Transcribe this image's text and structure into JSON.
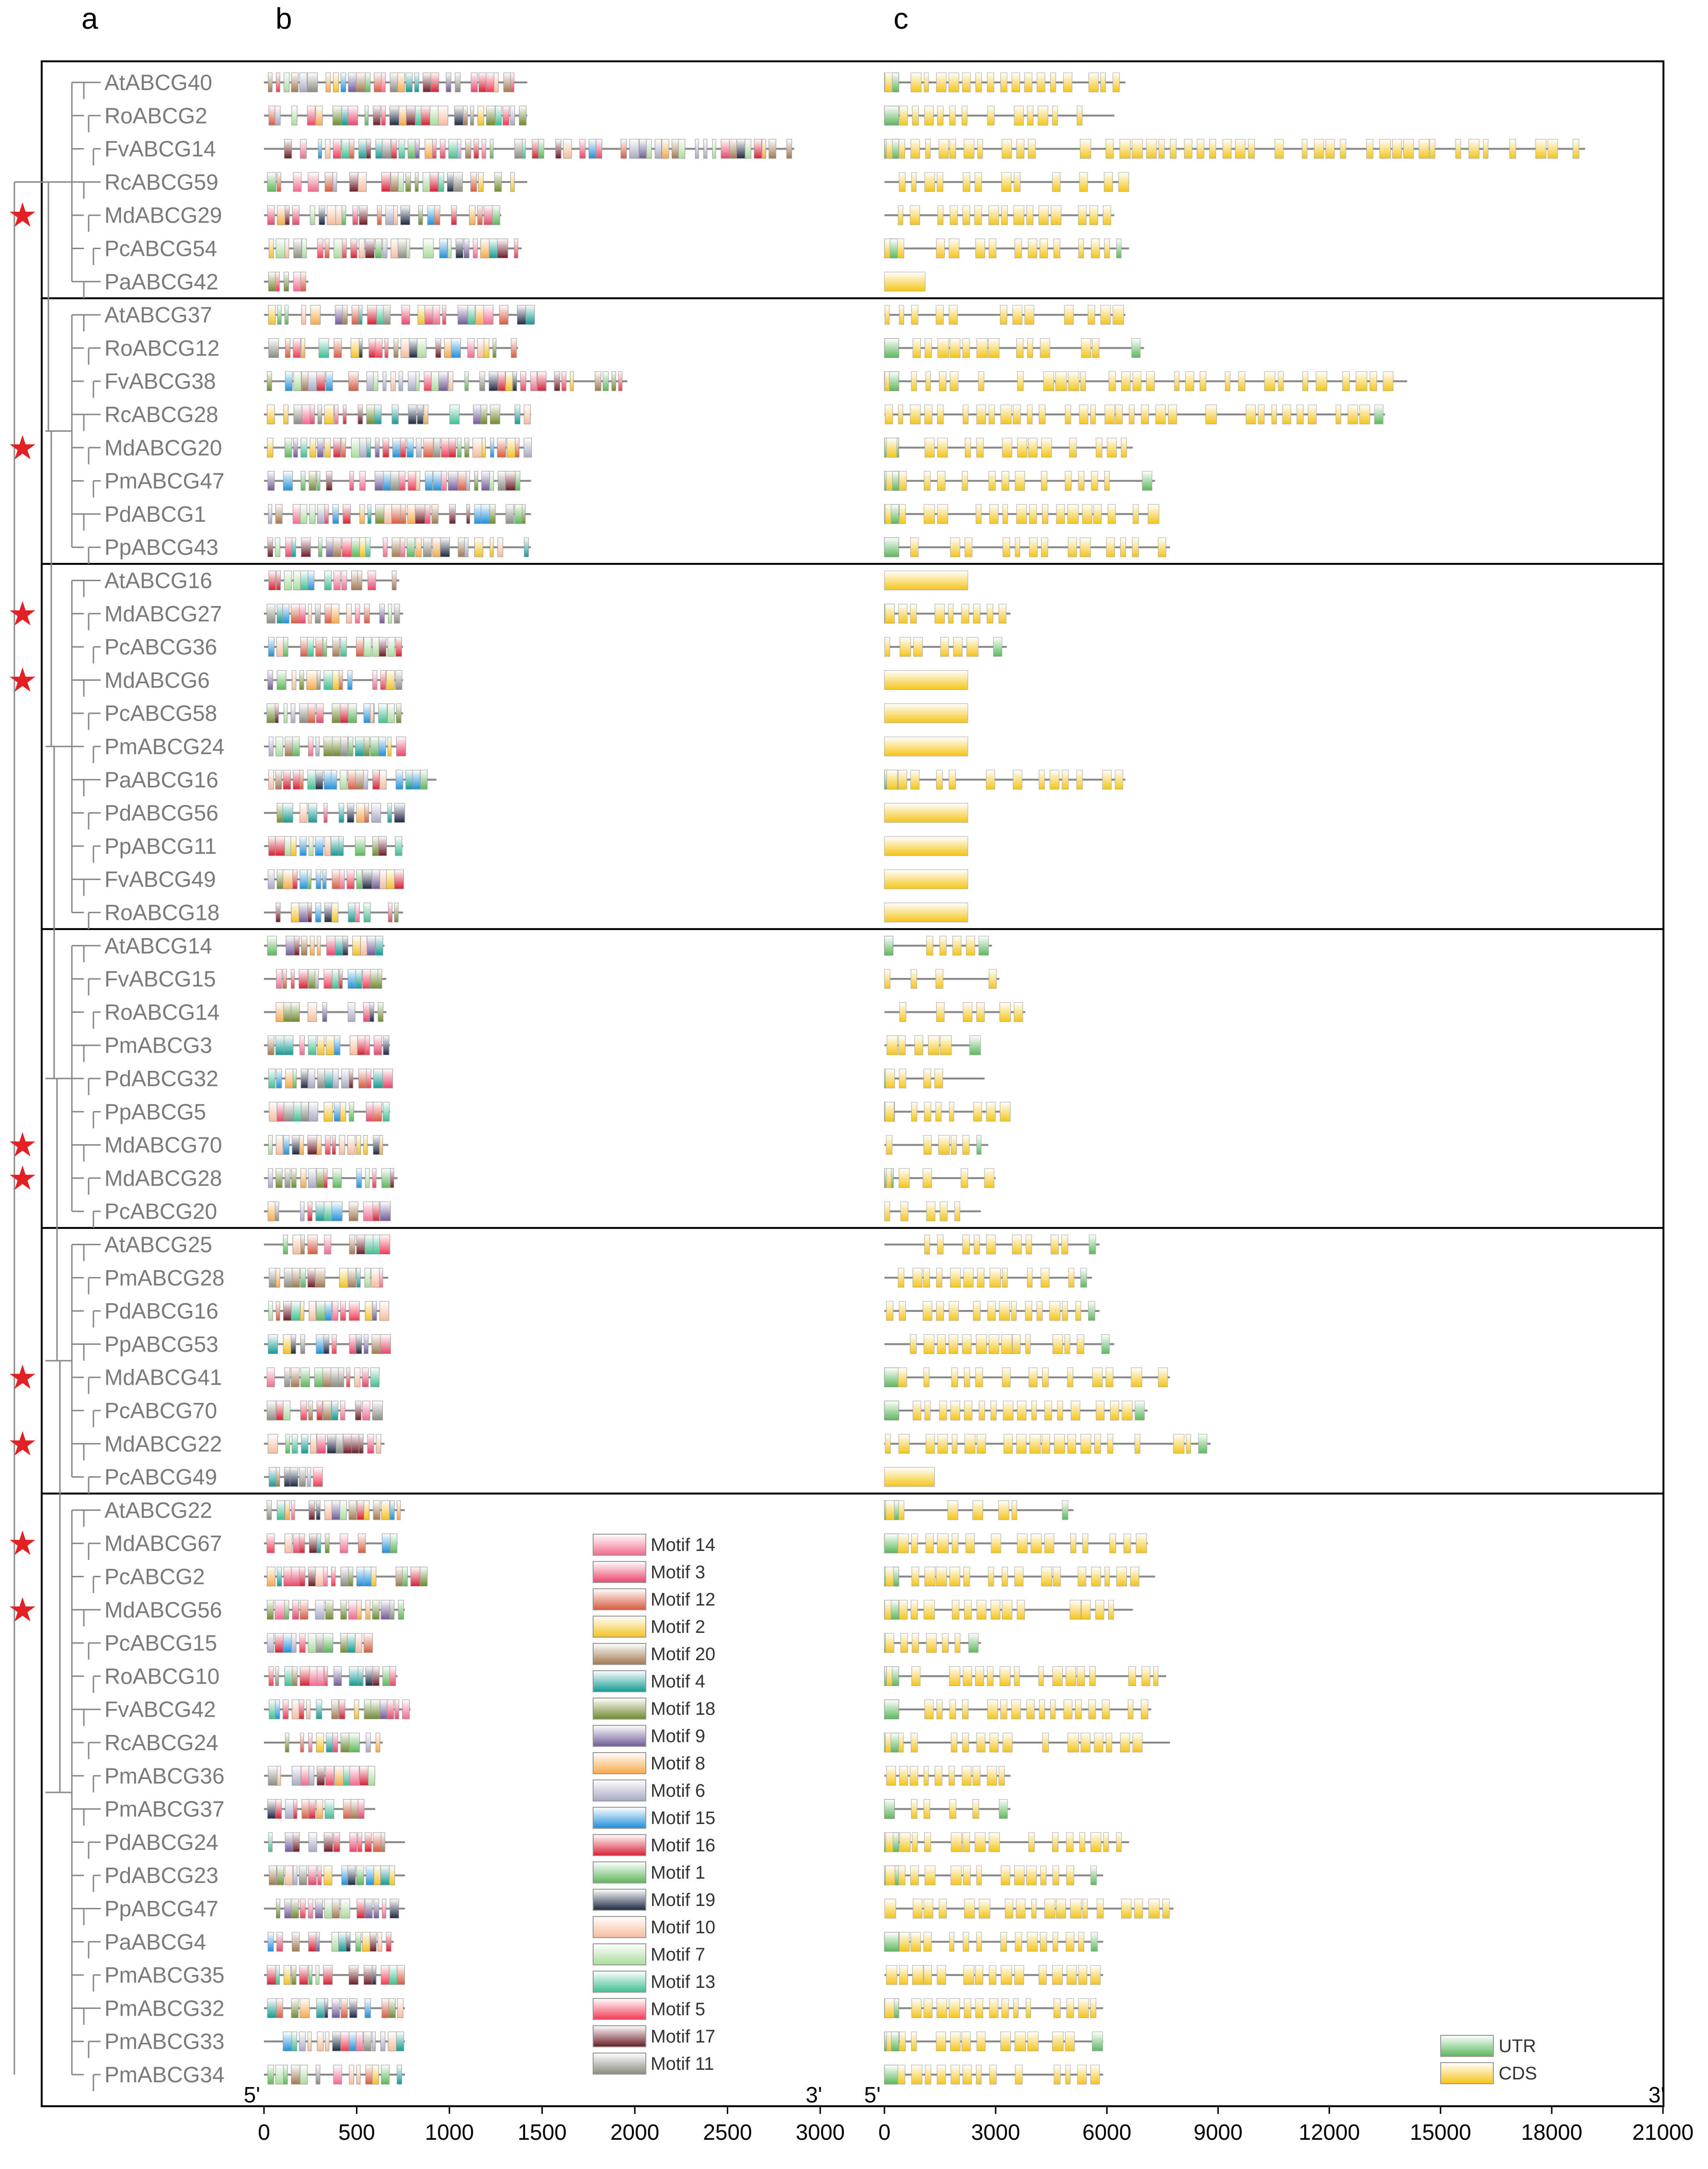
{
  "panel_labels": [
    "a",
    "b",
    "c"
  ],
  "colors": {
    "motif_gradients": {
      "Motif 14": [
        "#ffffff",
        "#f26a8d"
      ],
      "Motif 3": [
        "#ffffff",
        "#e8456a"
      ],
      "Motif 12": [
        "#ffffff",
        "#d85a3e"
      ],
      "Motif 2": [
        "#ffffff",
        "#f4c223"
      ],
      "Motif 20": [
        "#ffffff",
        "#a07850"
      ],
      "Motif 4": [
        "#ffffff",
        "#129a92"
      ],
      "Motif 18": [
        "#ffffff",
        "#6e8a2e"
      ],
      "Motif 9": [
        "#ffffff",
        "#6f5a96"
      ],
      "Motif 8": [
        "#ffffff",
        "#f7a94a"
      ],
      "Motif 6": [
        "#ffffff",
        "#a7a9c4"
      ],
      "Motif 15": [
        "#ffffff",
        "#1e8fdc"
      ],
      "Motif 16": [
        "#ffffff",
        "#d62034"
      ],
      "Motif 1": [
        "#ffffff",
        "#5db65a"
      ],
      "Motif 19": [
        "#ffffff",
        "#1c2740"
      ],
      "Motif 10": [
        "#ffffff",
        "#f6bc9c"
      ],
      "Motif 7": [
        "#ffffff",
        "#a9dc9c"
      ],
      "Motif 13": [
        "#ffffff",
        "#3fbf8f"
      ],
      "Motif 5": [
        "#ffffff",
        "#f23a53"
      ],
      "Motif 17": [
        "#ffffff",
        "#6b1a24"
      ],
      "Motif 11": [
        "#ffffff",
        "#8a8a80"
      ]
    },
    "utr": "#5cb85c",
    "cds": "#f5c518",
    "star": "#e32024",
    "label_text": "#7a7a7a"
  },
  "motif_legend": [
    "Motif 14",
    "Motif 3",
    "Motif 12",
    "Motif 2",
    "Motif 20",
    "Motif 4",
    "Motif 18",
    "Motif 9",
    "Motif 8",
    "Motif 6",
    "Motif 15",
    "Motif 16",
    "Motif 1",
    "Motif 19",
    "Motif 10",
    "Motif 7",
    "Motif 13",
    "Motif 5",
    "Motif 17",
    "Motif 11"
  ],
  "structure_legend": [
    "UTR",
    "CDS"
  ],
  "axis_b": {
    "start_label": "5'",
    "end_label": "3'",
    "ticks": [
      0,
      500,
      1000,
      1500,
      2000,
      2500,
      3000
    ],
    "max": 3000
  },
  "axis_c": {
    "start_label": "5'",
    "end_label": "3'",
    "ticks": [
      0,
      3000,
      6000,
      9000,
      12000,
      15000,
      18000,
      21000
    ],
    "max": 21000
  },
  "groups": [
    {
      "genes": [
        {
          "name": "AtABCG40",
          "star": false,
          "protein_len": 1420,
          "gene_len": 6500
        },
        {
          "name": "RoABCG2",
          "star": false,
          "protein_len": 1420,
          "gene_len": 6200
        },
        {
          "name": "FvABCG14",
          "star": false,
          "protein_len": 2860,
          "gene_len": 18900
        },
        {
          "name": "RcABCG59",
          "star": false,
          "protein_len": 1420,
          "gene_len": 6600
        },
        {
          "name": "MdABCG29",
          "star": true,
          "protein_len": 1280,
          "gene_len": 6200
        },
        {
          "name": "PcABCG54",
          "star": false,
          "protein_len": 1390,
          "gene_len": 6600
        },
        {
          "name": "PaABCG42",
          "star": false,
          "protein_len": 240,
          "gene_len": 1100
        }
      ]
    },
    {
      "genes": [
        {
          "name": "AtABCG37",
          "star": false,
          "protein_len": 1450,
          "gene_len": 6500
        },
        {
          "name": "RoABCG12",
          "star": false,
          "protein_len": 1370,
          "gene_len": 7000
        },
        {
          "name": "FvABCG38",
          "star": false,
          "protein_len": 1960,
          "gene_len": 14100
        },
        {
          "name": "RcABCG28",
          "star": false,
          "protein_len": 1440,
          "gene_len": 13500
        },
        {
          "name": "MdABCG20",
          "star": true,
          "protein_len": 1440,
          "gene_len": 6700
        },
        {
          "name": "PmABCG47",
          "star": false,
          "protein_len": 1440,
          "gene_len": 7300
        },
        {
          "name": "PdABCG1",
          "star": false,
          "protein_len": 1440,
          "gene_len": 7400
        },
        {
          "name": "PpABCG43",
          "star": false,
          "protein_len": 1440,
          "gene_len": 7700
        }
      ]
    },
    {
      "genes": [
        {
          "name": "AtABCG16",
          "star": false,
          "protein_len": 730,
          "gene_len": 2250
        },
        {
          "name": "MdABCG27",
          "star": true,
          "protein_len": 750,
          "gene_len": 3400
        },
        {
          "name": "PcABCG36",
          "star": false,
          "protein_len": 750,
          "gene_len": 3300
        },
        {
          "name": "MdABCG6",
          "star": true,
          "protein_len": 750,
          "gene_len": 2250
        },
        {
          "name": "PcABCG58",
          "star": false,
          "protein_len": 750,
          "gene_len": 2250
        },
        {
          "name": "PmABCG24",
          "star": false,
          "protein_len": 750,
          "gene_len": 2250
        },
        {
          "name": "PaABCG16",
          "star": false,
          "protein_len": 930,
          "gene_len": 6500
        },
        {
          "name": "PdABCG56",
          "star": false,
          "protein_len": 750,
          "gene_len": 2250
        },
        {
          "name": "PpABCG11",
          "star": false,
          "protein_len": 750,
          "gene_len": 2250
        },
        {
          "name": "FvABCG49",
          "star": false,
          "protein_len": 750,
          "gene_len": 2250
        },
        {
          "name": "RoABCG18",
          "star": false,
          "protein_len": 750,
          "gene_len": 2250
        }
      ]
    },
    {
      "genes": [
        {
          "name": "AtABCG14",
          "star": false,
          "protein_len": 650,
          "gene_len": 2900
        },
        {
          "name": "FvABCG15",
          "star": false,
          "protein_len": 660,
          "gene_len": 3100
        },
        {
          "name": "RoABCG14",
          "star": false,
          "protein_len": 660,
          "gene_len": 3800
        },
        {
          "name": "PmABCG3",
          "star": false,
          "protein_len": 680,
          "gene_len": 2600
        },
        {
          "name": "PdABCG32",
          "star": false,
          "protein_len": 680,
          "gene_len": 2700
        },
        {
          "name": "PpABCG5",
          "star": false,
          "protein_len": 680,
          "gene_len": 3400
        },
        {
          "name": "MdABCG70",
          "star": true,
          "protein_len": 670,
          "gene_len": 2800
        },
        {
          "name": "MdABCG28",
          "star": true,
          "protein_len": 720,
          "gene_len": 3000
        },
        {
          "name": "PcABCG20",
          "star": false,
          "protein_len": 670,
          "gene_len": 2600
        }
      ]
    },
    {
      "genes": [
        {
          "name": "AtABCG25",
          "star": false,
          "protein_len": 670,
          "gene_len": 5800
        },
        {
          "name": "PmABCG28",
          "star": false,
          "protein_len": 670,
          "gene_len": 5600
        },
        {
          "name": "PdABCG16",
          "star": false,
          "protein_len": 670,
          "gene_len": 5800
        },
        {
          "name": "PpABCG53",
          "star": false,
          "protein_len": 670,
          "gene_len": 6200
        },
        {
          "name": "MdABCG41",
          "star": true,
          "protein_len": 620,
          "gene_len": 7700
        },
        {
          "name": "PcABCG70",
          "star": false,
          "protein_len": 620,
          "gene_len": 7100
        },
        {
          "name": "MdABCG22",
          "star": true,
          "protein_len": 650,
          "gene_len": 8800
        },
        {
          "name": "PcABCG49",
          "star": false,
          "protein_len": 310,
          "gene_len": 1350
        }
      ]
    },
    {
      "genes": [
        {
          "name": "AtABCG22",
          "star": false,
          "protein_len": 760,
          "gene_len": 5100
        },
        {
          "name": "MdABCG67",
          "star": true,
          "protein_len": 720,
          "gene_len": 7100
        },
        {
          "name": "PcABCG2",
          "star": false,
          "protein_len": 880,
          "gene_len": 7300
        },
        {
          "name": "MdABCG56",
          "star": true,
          "protein_len": 760,
          "gene_len": 6700
        },
        {
          "name": "PcABCG15",
          "star": false,
          "protein_len": 580,
          "gene_len": 2600
        },
        {
          "name": "RoABCG10",
          "star": false,
          "protein_len": 720,
          "gene_len": 7600
        },
        {
          "name": "FvABCG42",
          "star": false,
          "protein_len": 790,
          "gene_len": 7200
        },
        {
          "name": "RcABCG24",
          "star": false,
          "protein_len": 640,
          "gene_len": 7700
        },
        {
          "name": "PmABCG36",
          "star": false,
          "protein_len": 600,
          "gene_len": 3400
        },
        {
          "name": "PmABCG37",
          "star": false,
          "protein_len": 600,
          "gene_len": 3400
        },
        {
          "name": "PdABCG24",
          "star": false,
          "protein_len": 760,
          "gene_len": 6600
        },
        {
          "name": "PdABCG23",
          "star": false,
          "protein_len": 760,
          "gene_len": 5900
        },
        {
          "name": "PpABCG47",
          "star": false,
          "protein_len": 760,
          "gene_len": 7800
        },
        {
          "name": "PaABCG4",
          "star": false,
          "protein_len": 700,
          "gene_len": 5900
        },
        {
          "name": "PmABCG35",
          "star": false,
          "protein_len": 760,
          "gene_len": 5900
        },
        {
          "name": "PmABCG32",
          "star": false,
          "protein_len": 760,
          "gene_len": 5900
        },
        {
          "name": "PmABCG33",
          "star": false,
          "protein_len": 760,
          "gene_len": 5900
        },
        {
          "name": "PmABCG34",
          "star": false,
          "protein_len": 760,
          "gene_len": 5900
        }
      ]
    }
  ]
}
